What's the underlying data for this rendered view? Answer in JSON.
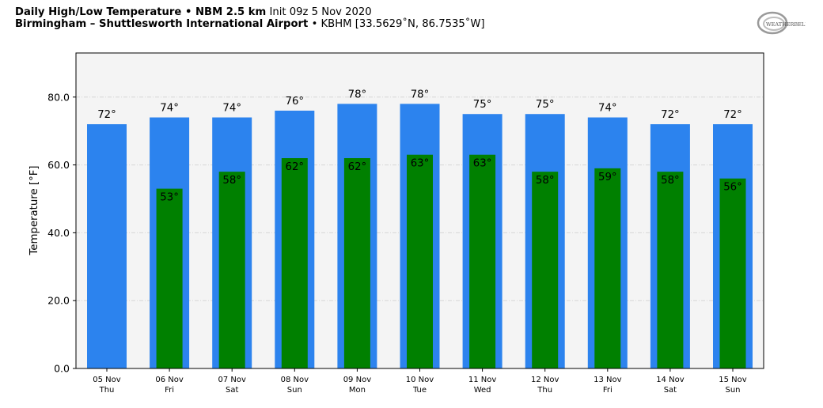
{
  "title": {
    "line1_bold": "Daily High/Low Temperature • NBM 2.5 km",
    "line1_normal": "Init 09z 5 Nov 2020",
    "line2_bold": "Birmingham – Shuttlesworth International Airport",
    "line2_normal": "• KBHM [33.5629˚N, 86.7535˚W]"
  },
  "logo": {
    "text": "WEATHERBELL",
    "icon": "weatherbell-logo"
  },
  "colors": {
    "high": "#2c83ee",
    "low": "#008000",
    "plot_bg": "#f4f4f4",
    "grid": "#d6d6d6"
  },
  "chart_data": {
    "type": "bar",
    "ylabel": "Temperature [°F]",
    "ylim": [
      0,
      93
    ],
    "yticks": [
      0,
      20,
      40,
      60,
      80
    ],
    "ytick_labels": [
      "0.0",
      "20.0",
      "40.0",
      "60.0",
      "80.0"
    ],
    "grid": true,
    "categories": [
      [
        "05 Nov",
        "Thu"
      ],
      [
        "06 Nov",
        "Fri"
      ],
      [
        "07 Nov",
        "Sat"
      ],
      [
        "08 Nov",
        "Sun"
      ],
      [
        "09 Nov",
        "Mon"
      ],
      [
        "10 Nov",
        "Tue"
      ],
      [
        "11 Nov",
        "Wed"
      ],
      [
        "12 Nov",
        "Thu"
      ],
      [
        "13 Nov",
        "Fri"
      ],
      [
        "14 Nov",
        "Sat"
      ],
      [
        "15 Nov",
        "Sun"
      ]
    ],
    "series": [
      {
        "key": "high",
        "values": [
          72,
          74,
          74,
          76,
          78,
          78,
          75,
          75,
          74,
          72,
          72
        ]
      },
      {
        "key": "low",
        "values": [
          null,
          53,
          58,
          62,
          62,
          63,
          63,
          58,
          59,
          58,
          56
        ]
      }
    ],
    "value_suffix": "°"
  }
}
